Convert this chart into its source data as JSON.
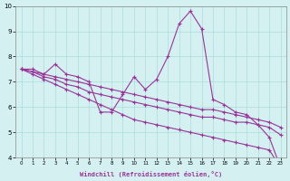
{
  "xlabel": "Windchill (Refroidissement éolien,°C)",
  "background_color": "#d4f0f0",
  "line_color": "#993399",
  "x_data": [
    0,
    1,
    2,
    3,
    4,
    5,
    6,
    7,
    8,
    9,
    10,
    11,
    12,
    13,
    14,
    15,
    16,
    17,
    18,
    19,
    20,
    21,
    22,
    23
  ],
  "series": [
    [
      7.5,
      7.5,
      7.3,
      7.7,
      7.3,
      7.2,
      7.0,
      5.8,
      5.8,
      6.5,
      7.2,
      6.7,
      7.1,
      8.0,
      9.3,
      9.8,
      9.1,
      6.3,
      6.1,
      5.8,
      5.7,
      5.3,
      4.8,
      3.6
    ],
    [
      7.5,
      7.4,
      7.2,
      7.1,
      6.9,
      6.8,
      6.6,
      6.5,
      6.4,
      6.3,
      6.2,
      6.1,
      6.0,
      5.9,
      5.8,
      5.7,
      5.6,
      5.6,
      5.5,
      5.4,
      5.4,
      5.3,
      5.2,
      4.9
    ],
    [
      7.5,
      7.4,
      7.3,
      7.2,
      7.1,
      7.0,
      6.9,
      6.8,
      6.7,
      6.6,
      6.5,
      6.4,
      6.3,
      6.2,
      6.1,
      6.0,
      5.9,
      5.9,
      5.8,
      5.7,
      5.6,
      5.5,
      5.4,
      5.2
    ],
    [
      7.5,
      7.3,
      7.1,
      6.9,
      6.7,
      6.5,
      6.3,
      6.1,
      5.9,
      5.7,
      5.5,
      5.4,
      5.3,
      5.2,
      5.1,
      5.0,
      4.9,
      4.8,
      4.7,
      4.6,
      4.5,
      4.4,
      4.3,
      3.6
    ]
  ],
  "ylim": [
    4,
    10
  ],
  "xlim": [
    -0.5,
    23.5
  ],
  "yticks": [
    4,
    5,
    6,
    7,
    8,
    9,
    10
  ],
  "xticks": [
    0,
    1,
    2,
    3,
    4,
    5,
    6,
    7,
    8,
    9,
    10,
    11,
    12,
    13,
    14,
    15,
    16,
    17,
    18,
    19,
    20,
    21,
    22,
    23
  ]
}
